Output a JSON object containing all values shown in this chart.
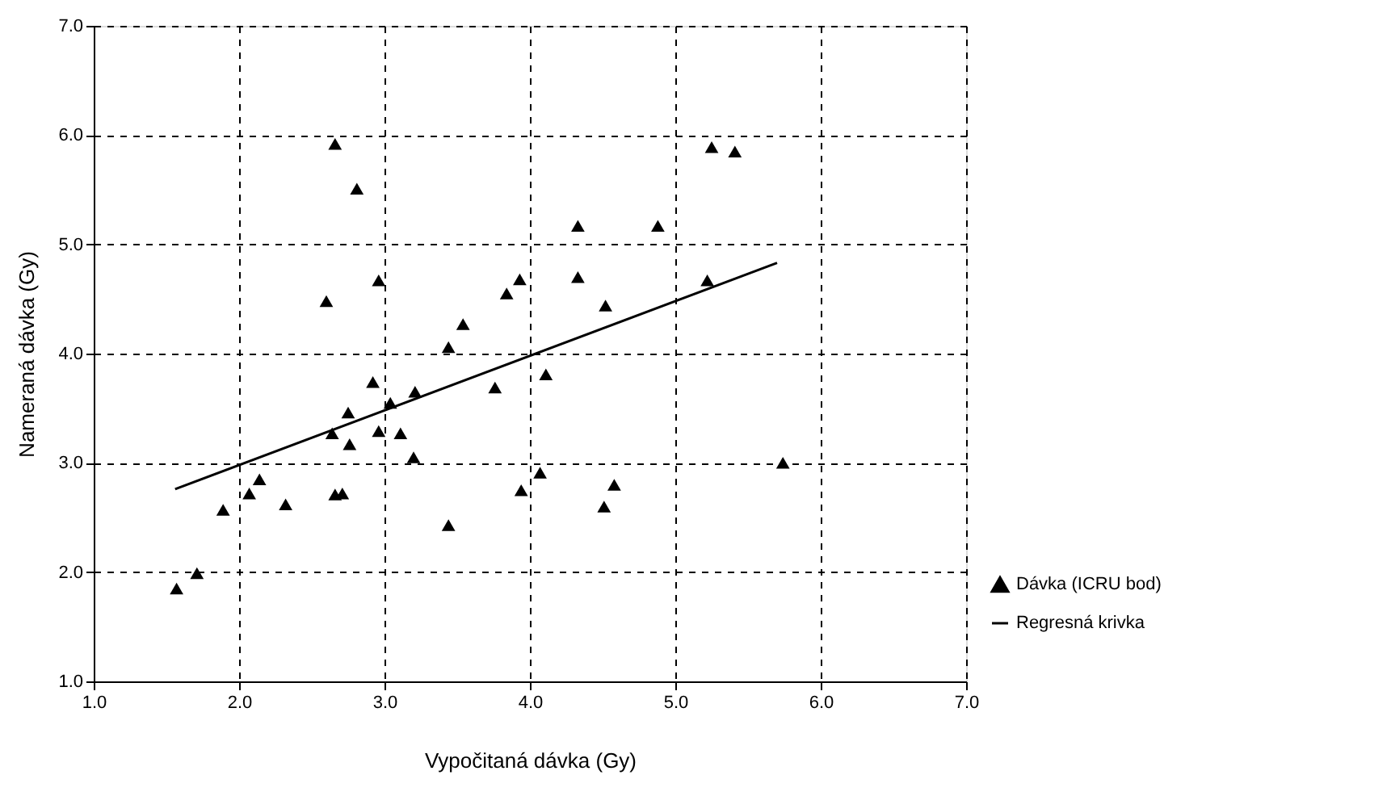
{
  "chart_data": {
    "type": "scatter",
    "xlabel": "Vypočitaná dávka (Gy)",
    "ylabel": "Nameraná dávka (Gy)",
    "xlim": [
      1,
      7
    ],
    "ylim": [
      1,
      7
    ],
    "xticks": [
      {
        "value": 1,
        "label": "1.0"
      },
      {
        "value": 2,
        "label": "2.0"
      },
      {
        "value": 3,
        "label": "3.0"
      },
      {
        "value": 4,
        "label": "4.0"
      },
      {
        "value": 5,
        "label": "5.0"
      },
      {
        "value": 6,
        "label": "6.0"
      },
      {
        "value": 7,
        "label": "7.0"
      }
    ],
    "yticks": [
      {
        "value": 1,
        "label": "1.0"
      },
      {
        "value": 2,
        "label": "2.0"
      },
      {
        "value": 3,
        "label": "3.0"
      },
      {
        "value": 4,
        "label": "4.0"
      },
      {
        "value": 5,
        "label": "5.0"
      },
      {
        "value": 6,
        "label": "6.0"
      },
      {
        "value": 7,
        "label": "7.0"
      }
    ],
    "grid": true,
    "legend": "bottom right",
    "series": [
      {
        "name": "Dávka (ICRU bod)",
        "type": "scatter",
        "marker": "triangle",
        "color": "#000000",
        "x": [
          1.57,
          1.71,
          1.89,
          2.07,
          2.14,
          2.32,
          2.66,
          2.81,
          2.6,
          2.96,
          4.33,
          4.33,
          4.52,
          3.84,
          3.93,
          3.54,
          3.44,
          2.92,
          3.21,
          3.04,
          2.75,
          2.64,
          2.76,
          2.96,
          3.11,
          3.2,
          2.66,
          2.71,
          3.44,
          3.76,
          4.11,
          4.07,
          3.94,
          4.51,
          4.58,
          4.88,
          5.22,
          5.25,
          5.41,
          5.74
        ],
        "values": [
          1.85,
          1.99,
          2.57,
          2.72,
          2.85,
          2.62,
          5.92,
          5.51,
          4.48,
          4.67,
          5.17,
          4.7,
          4.44,
          4.55,
          4.68,
          4.27,
          4.06,
          3.74,
          3.65,
          3.55,
          3.46,
          3.27,
          3.17,
          3.29,
          3.27,
          3.05,
          2.71,
          2.72,
          2.43,
          3.69,
          3.81,
          2.91,
          2.75,
          2.6,
          2.8,
          5.17,
          4.67,
          5.89,
          5.85,
          3.0
        ]
      },
      {
        "name": "Regresná krivka",
        "type": "line",
        "marker": "none",
        "line_style": "solid",
        "color": "#000000",
        "x": [
          1.56,
          5.7
        ],
        "values": [
          2.76,
          4.83
        ]
      }
    ]
  }
}
